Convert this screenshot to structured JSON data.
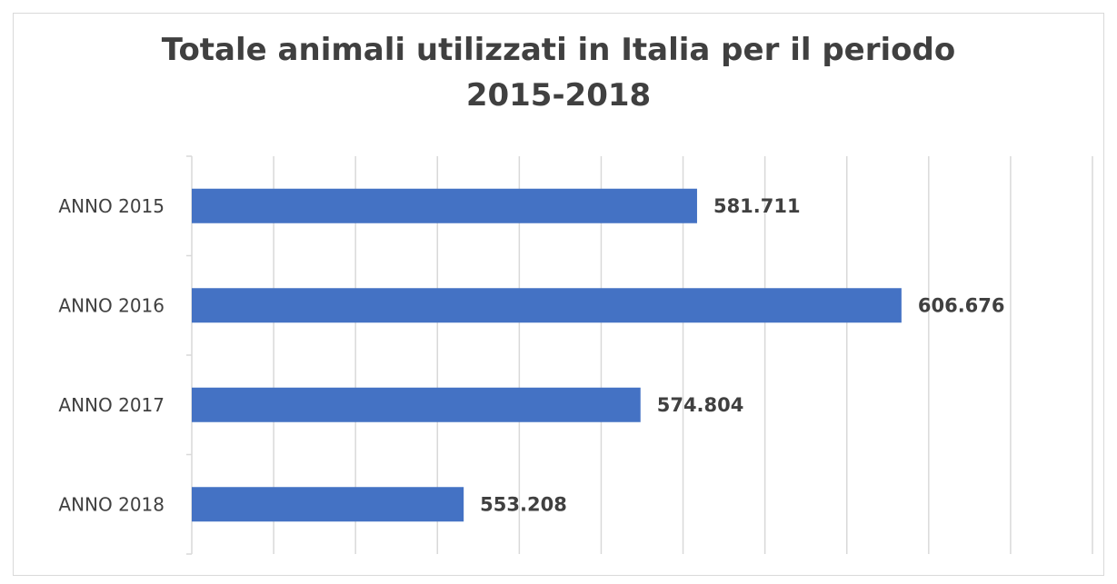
{
  "chart_data": {
    "type": "bar",
    "orientation": "horizontal",
    "title": "Totale animali utilizzati in Italia per il periodo\n2015-2018",
    "categories": [
      "ANNO 2015",
      "ANNO 2016",
      "ANNO 2017",
      "ANNO 2018"
    ],
    "values": [
      581711,
      606676,
      574804,
      553208
    ],
    "data_labels": [
      "581.711",
      "606.676",
      "574.804",
      "553.208"
    ],
    "xlim": [
      520000,
      630000
    ],
    "x_gridline_step": 10000,
    "x_tick_labels_shown": false,
    "grid": true,
    "legend": "none",
    "bar_color": "#4472C4",
    "gridline_color": "#d9d9d9"
  }
}
